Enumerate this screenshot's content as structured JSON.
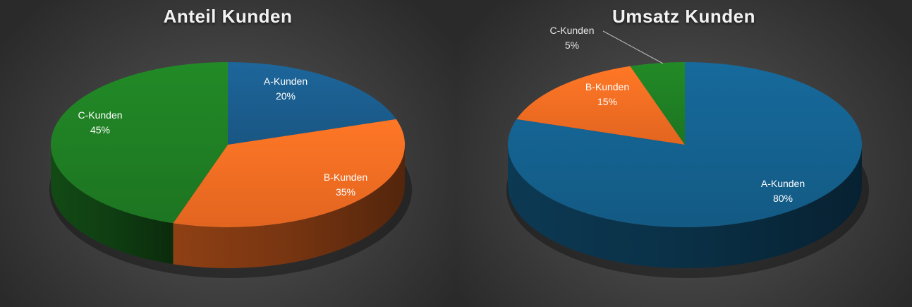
{
  "chart_data": [
    {
      "type": "pie",
      "title": "Anteil Kunden",
      "categories": [
        "A-Kunden",
        "B-Kunden",
        "C-Kunden"
      ],
      "values": [
        20,
        35,
        45
      ],
      "value_labels": [
        "20%",
        "35%",
        "45%"
      ],
      "colors": [
        "#1a5b8a",
        "#ee6a22",
        "#1e7b23"
      ],
      "style": "3d"
    },
    {
      "type": "pie",
      "title": "Umsatz Kunden",
      "categories": [
        "A-Kunden",
        "B-Kunden",
        "C-Kunden"
      ],
      "values": [
        80,
        15,
        5
      ],
      "value_labels": [
        "80%",
        "15%",
        "5%"
      ],
      "colors": [
        "#145f8b",
        "#ee6a22",
        "#1e7b23"
      ],
      "style": "3d"
    }
  ]
}
